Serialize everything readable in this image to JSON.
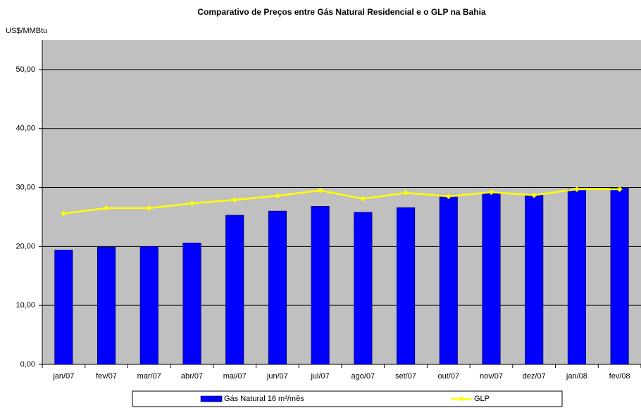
{
  "chart_data": {
    "type": "bar-line",
    "title": "Comparativo de Preços entre Gás Natural Residencial e o GLP na Bahia",
    "y_axis_label": "US$/MMBtu",
    "categories": [
      "jan/07",
      "fev/07",
      "mar/07",
      "abr/07",
      "mai/07",
      "jun/07",
      "jul/07",
      "ago/07",
      "set/07",
      "out/07",
      "nov/07",
      "dez/07",
      "jan/08",
      "fev/08"
    ],
    "series": [
      {
        "name": "Gás Natural 16 m³/mês",
        "type": "bar",
        "color": "#0000ff",
        "values": [
          19.4,
          19.9,
          20.0,
          20.6,
          25.3,
          26.0,
          26.8,
          25.8,
          26.6,
          28.4,
          29.0,
          28.7,
          29.7,
          29.9
        ]
      },
      {
        "name": "GLP",
        "type": "line",
        "color": "#ffff00",
        "values": [
          25.6,
          26.5,
          26.5,
          27.3,
          27.9,
          28.6,
          29.5,
          28.1,
          29.1,
          28.5,
          29.2,
          28.7,
          29.7,
          29.7
        ]
      }
    ],
    "ylim": [
      0,
      55
    ],
    "yticks": [
      {
        "value": 0,
        "label": "0,00"
      },
      {
        "value": 10,
        "label": "10,00"
      },
      {
        "value": 20,
        "label": "20,00"
      },
      {
        "value": 30,
        "label": "30,00"
      },
      {
        "value": 40,
        "label": "40,00"
      },
      {
        "value": 50,
        "label": "50,00"
      }
    ],
    "grid": true,
    "legend": "bottom"
  }
}
